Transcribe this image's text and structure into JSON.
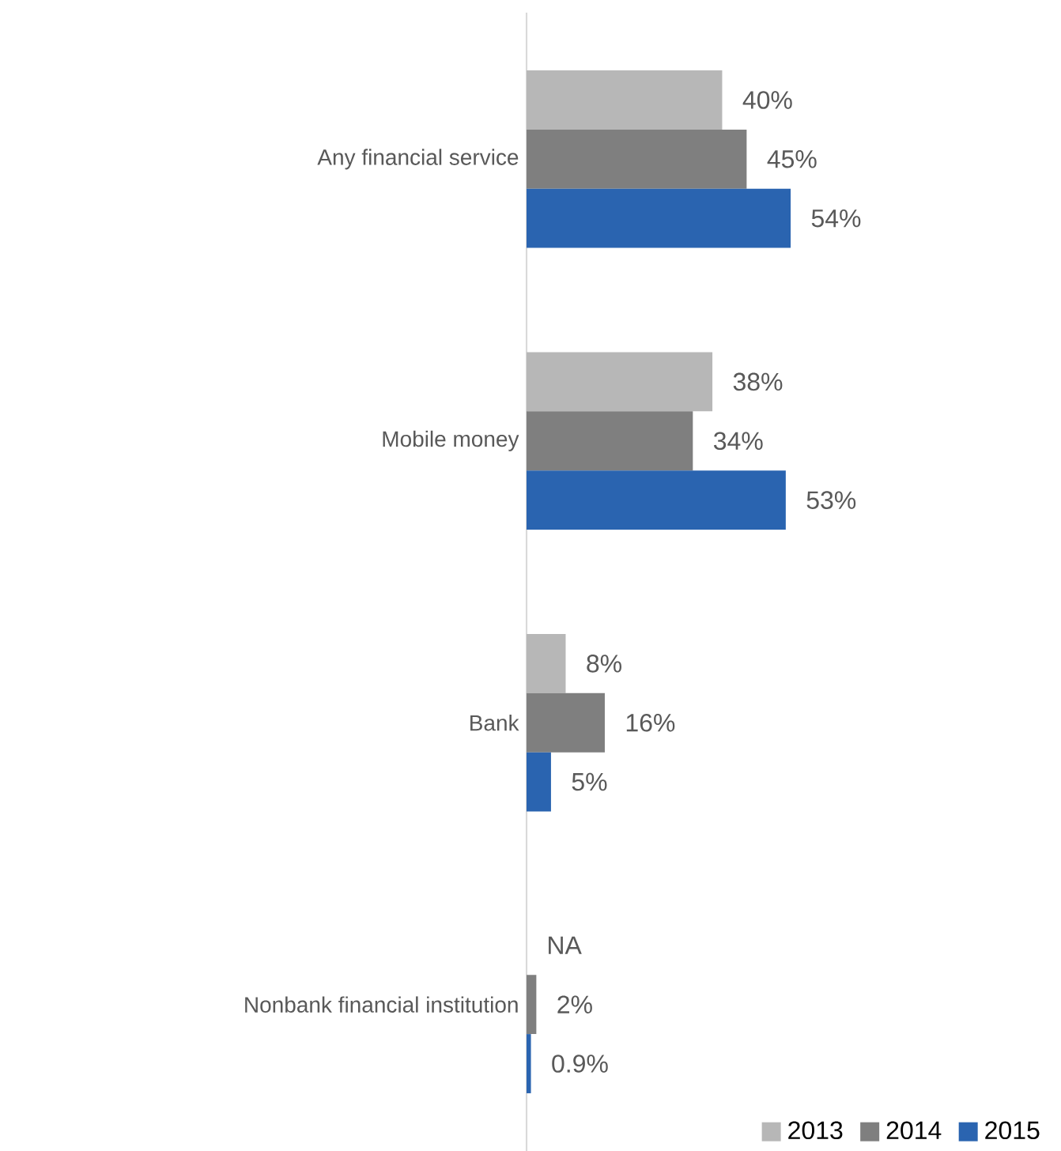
{
  "chart_data": {
    "type": "bar",
    "orientation": "horizontal",
    "categories": [
      "Any financial service",
      "Mobile money",
      "Bank",
      "Nonbank financial institution"
    ],
    "series": [
      {
        "name": "2013",
        "color": "#b7b7b7",
        "values": [
          40,
          38,
          8,
          null
        ],
        "value_labels": [
          "40%",
          "38%",
          "8%",
          "NA"
        ]
      },
      {
        "name": "2014",
        "color": "#7f7f7f",
        "values": [
          45,
          34,
          16,
          2
        ],
        "value_labels": [
          "45%",
          "34%",
          "16%",
          "2%"
        ]
      },
      {
        "name": "2015",
        "color": "#2a64b0",
        "values": [
          54,
          53,
          5,
          0.9
        ],
        "value_labels": [
          "54%",
          "53%",
          "5%",
          "0.9%"
        ]
      }
    ],
    "tick_labels": "y",
    "legend": "bottom right"
  }
}
